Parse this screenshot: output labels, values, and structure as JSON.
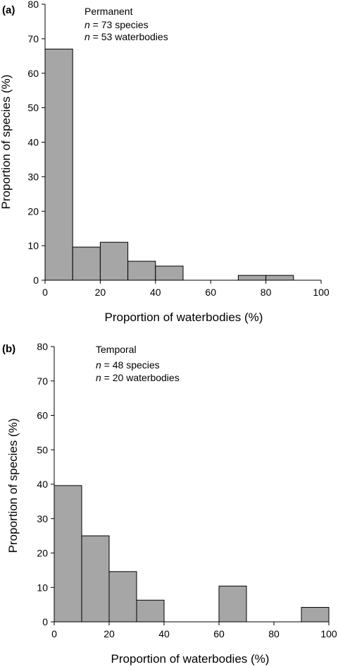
{
  "chart_data": [
    {
      "type": "bar",
      "panel_label": "(a)",
      "annotation": {
        "title": "Permanent",
        "lines": [
          {
            "italic": "n",
            "rest": " = 73 species"
          },
          {
            "italic": "n",
            "rest": " = 53 waterbodies"
          }
        ]
      },
      "xlabel": "Proportion of waterbodies (%)",
      "ylabel": "Proportion of species (%)",
      "xlim": [
        0,
        100
      ],
      "ylim": [
        0,
        80
      ],
      "xticks": [
        0,
        20,
        40,
        60,
        80,
        100
      ],
      "yticks": [
        0,
        10,
        20,
        30,
        40,
        50,
        60,
        70,
        80
      ],
      "bin_width": 10,
      "bin_starts": [
        0,
        10,
        20,
        30,
        40,
        50,
        60,
        70,
        80,
        90
      ],
      "values": [
        67,
        9.6,
        11,
        5.5,
        4.1,
        0,
        0,
        1.4,
        1.4,
        0
      ],
      "grid": false
    },
    {
      "type": "bar",
      "panel_label": "(b)",
      "annotation": {
        "title": "Temporal",
        "lines": [
          {
            "italic": "n",
            "rest": " = 48 species"
          },
          {
            "italic": "n",
            "rest": " = 20 waterbodies"
          }
        ]
      },
      "xlabel": "Proportion of waterbodies (%)",
      "ylabel": "Proportion of species (%)",
      "xlim": [
        0,
        100
      ],
      "ylim": [
        0,
        80
      ],
      "xticks": [
        0,
        20,
        40,
        60,
        80,
        100
      ],
      "yticks": [
        0,
        10,
        20,
        30,
        40,
        50,
        60,
        70,
        80
      ],
      "bin_width": 10,
      "bin_starts": [
        0,
        10,
        20,
        30,
        40,
        50,
        60,
        70,
        80,
        90
      ],
      "values": [
        39.6,
        25,
        14.6,
        6.3,
        0,
        0,
        10.4,
        0,
        0,
        4.2
      ],
      "grid": false
    }
  ]
}
